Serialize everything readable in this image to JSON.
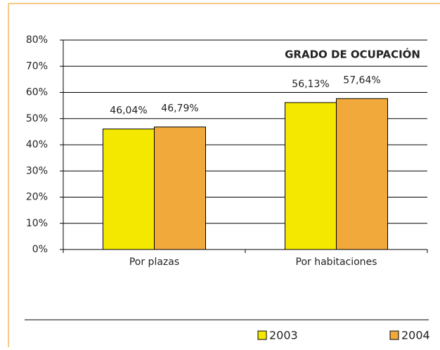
{
  "chart_data": {
    "type": "bar",
    "title": "GRADO DE OCUPACIÓN",
    "categories": [
      "Por plazas",
      "Por habitaciones"
    ],
    "series": [
      {
        "name": "2003",
        "color": "#f5e800",
        "values": [
          46.04,
          56.13
        ],
        "value_labels": [
          "46,04%",
          "56,13%"
        ]
      },
      {
        "name": "2004",
        "color": "#f2a93b",
        "values": [
          46.79,
          57.64
        ],
        "value_labels": [
          "46,79%",
          "57,64%"
        ]
      }
    ],
    "ylim": [
      0,
      80
    ],
    "yticks": [
      {
        "value": 0,
        "label": "0%"
      },
      {
        "value": 10,
        "label": "10%"
      },
      {
        "value": 20,
        "label": "20%"
      },
      {
        "value": 30,
        "label": "30%"
      },
      {
        "value": 40,
        "label": "40%"
      },
      {
        "value": 50,
        "label": "50%"
      },
      {
        "value": 60,
        "label": "60%"
      },
      {
        "value": 70,
        "label": "70%"
      },
      {
        "value": 80,
        "label": "80%"
      }
    ],
    "grid": true,
    "legend": "bottom"
  }
}
